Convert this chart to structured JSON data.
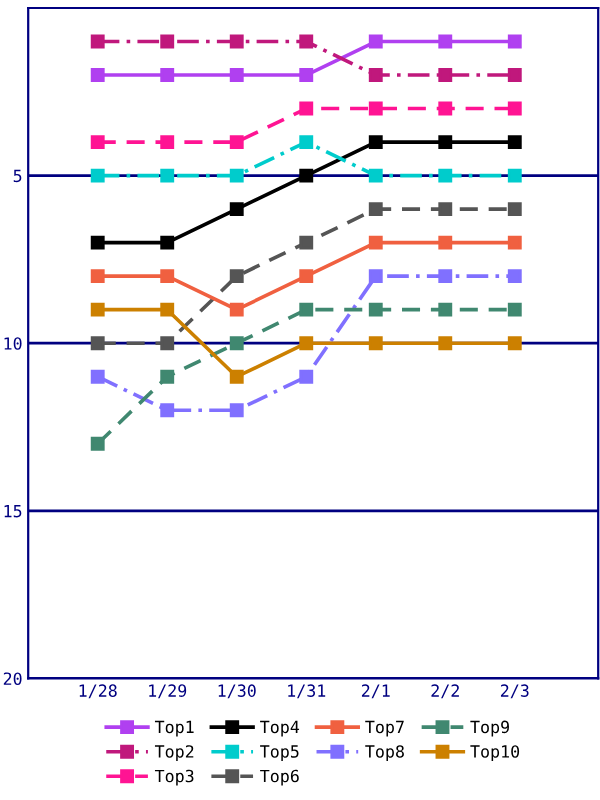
{
  "chart_data": {
    "type": "line",
    "categories": [
      "1/28",
      "1/29",
      "1/30",
      "1/31",
      "2/1",
      "2/2",
      "2/3"
    ],
    "ylim": [
      20,
      0
    ],
    "yticks": [
      5,
      10,
      15,
      20
    ],
    "grid": "y",
    "legend": "bottom",
    "marker": "square",
    "series": [
      {
        "name": "Top1",
        "color": "#b040f0",
        "line_style": "solid",
        "values": [
          2,
          2,
          2,
          2,
          1,
          1,
          1
        ]
      },
      {
        "name": "Top2",
        "color": "#c0187c",
        "line_style": "dashdot",
        "values": [
          1,
          1,
          1,
          1,
          2,
          2,
          2
        ]
      },
      {
        "name": "Top3",
        "color": "#ff1493",
        "line_style": "dashed",
        "values": [
          4,
          4,
          4,
          3,
          3,
          3,
          3
        ]
      },
      {
        "name": "Top4",
        "color": "#000000",
        "line_style": "solid",
        "values": [
          7,
          7,
          6,
          5,
          4,
          4,
          4
        ]
      },
      {
        "name": "Top5",
        "color": "#00cccc",
        "line_style": "dashdot",
        "values": [
          5,
          5,
          5,
          4,
          5,
          5,
          5
        ]
      },
      {
        "name": "Top6",
        "color": "#555555",
        "line_style": "dashed",
        "values": [
          10,
          10,
          8,
          7,
          6,
          6,
          6
        ]
      },
      {
        "name": "Top7",
        "color": "#f06040",
        "line_style": "solid",
        "values": [
          8,
          8,
          9,
          8,
          7,
          7,
          7
        ]
      },
      {
        "name": "Top8",
        "color": "#8070ff",
        "line_style": "dashdot",
        "values": [
          11,
          12,
          12,
          11,
          8,
          8,
          8
        ]
      },
      {
        "name": "Top9",
        "color": "#408870",
        "line_style": "dashed",
        "values": [
          13,
          11,
          10,
          9,
          9,
          9,
          9
        ]
      },
      {
        "name": "Top10",
        "color": "#cc8000",
        "line_style": "solid",
        "values": [
          9,
          9,
          11,
          10,
          10,
          10,
          10
        ]
      }
    ]
  }
}
